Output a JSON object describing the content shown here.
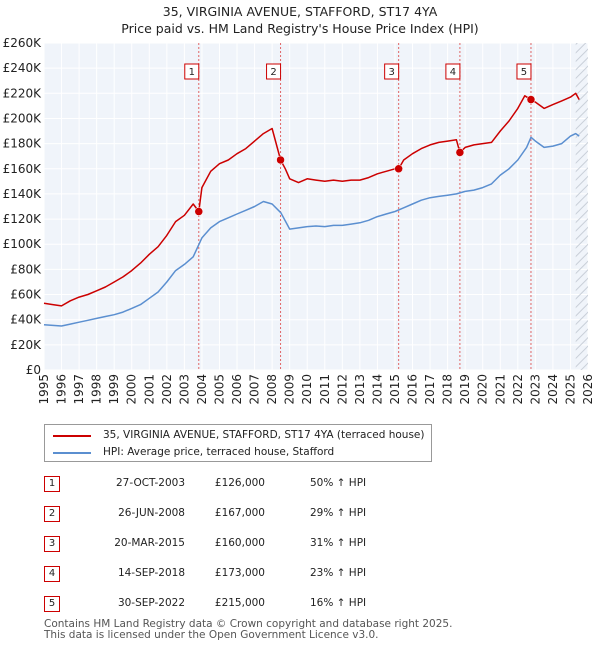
{
  "chart_data": {
    "type": "line",
    "title": "35, VIRGINIA AVENUE, STAFFORD, ST17 4YA",
    "subtitle": "Price paid vs. HM Land Registry's House Price Index (HPI)",
    "xlabel": "",
    "ylabel": "",
    "xlim": [
      1995,
      2026
    ],
    "ylim": [
      0,
      260000
    ],
    "y_ticks": [
      0,
      20000,
      40000,
      60000,
      80000,
      100000,
      120000,
      140000,
      160000,
      180000,
      200000,
      220000,
      240000,
      260000
    ],
    "y_tick_labels": [
      "£0",
      "£20K",
      "£40K",
      "£60K",
      "£80K",
      "£100K",
      "£120K",
      "£140K",
      "£160K",
      "£180K",
      "£200K",
      "£220K",
      "£240K",
      "£260K"
    ],
    "x_ticks": [
      1995,
      1996,
      1997,
      1998,
      1999,
      2000,
      2001,
      2002,
      2003,
      2004,
      2005,
      2006,
      2007,
      2008,
      2009,
      2010,
      2011,
      2012,
      2013,
      2014,
      2015,
      2016,
      2017,
      2018,
      2019,
      2020,
      2021,
      2022,
      2023,
      2024,
      2025,
      2026
    ],
    "x_tick_labels": [
      "1995",
      "1996",
      "1997",
      "1998",
      "1999",
      "2000",
      "2001",
      "2002",
      "2003",
      "2004",
      "2005",
      "2006",
      "2007",
      "2008",
      "2009",
      "2010",
      "2011",
      "2012",
      "2013",
      "2014",
      "2015",
      "2016",
      "2017",
      "2018",
      "2019",
      "2020",
      "2021",
      "2022",
      "2023",
      "2024",
      "2025",
      "2026"
    ],
    "grid": true,
    "series": [
      {
        "name": "35, VIRGINIA AVENUE, STAFFORD, ST17 4YA (terraced house)",
        "color": "#cc0000",
        "x": [
          1995.0,
          1995.5,
          1996.0,
          1996.5,
          1997.0,
          1997.5,
          1998.0,
          1998.5,
          1999.0,
          1999.5,
          2000.0,
          2000.5,
          2001.0,
          2001.5,
          2002.0,
          2002.5,
          2003.0,
          2003.5,
          2003.82,
          2004.0,
          2004.5,
          2005.0,
          2005.5,
          2006.0,
          2006.5,
          2007.0,
          2007.5,
          2008.0,
          2008.48,
          2008.75,
          2009.0,
          2009.5,
          2010.0,
          2010.5,
          2011.0,
          2011.5,
          2012.0,
          2012.5,
          2013.0,
          2013.5,
          2014.0,
          2014.5,
          2015.0,
          2015.21,
          2015.5,
          2016.0,
          2016.5,
          2017.0,
          2017.5,
          2018.0,
          2018.5,
          2018.7,
          2019.0,
          2019.5,
          2020.0,
          2020.5,
          2021.0,
          2021.5,
          2022.0,
          2022.4,
          2022.75,
          2023.0,
          2023.5,
          2024.0,
          2024.5,
          2025.0,
          2025.3,
          2025.5
        ],
        "values": [
          53000,
          52000,
          51000,
          55000,
          58000,
          60000,
          63000,
          66000,
          70000,
          74000,
          79000,
          85000,
          92000,
          98000,
          107000,
          118000,
          123000,
          132000,
          126000,
          145000,
          158000,
          164000,
          167000,
          172000,
          176000,
          182000,
          188000,
          192000,
          167000,
          160000,
          152000,
          149000,
          152000,
          151000,
          150000,
          151000,
          150000,
          151000,
          151000,
          153000,
          156000,
          158000,
          160000,
          160000,
          167000,
          172000,
          176000,
          179000,
          181000,
          182000,
          183000,
          173000,
          177000,
          179000,
          180000,
          181000,
          190000,
          198000,
          208000,
          218000,
          215000,
          213000,
          208000,
          211000,
          214000,
          217000,
          220000,
          215000
        ]
      },
      {
        "name": "HPI: Average price, terraced house, Stafford",
        "color": "#5b8fd0",
        "x": [
          1995.0,
          1995.5,
          1996.0,
          1996.5,
          1997.0,
          1997.5,
          1998.0,
          1998.5,
          1999.0,
          1999.5,
          2000.0,
          2000.5,
          2001.0,
          2001.5,
          2002.0,
          2002.5,
          2003.0,
          2003.5,
          2004.0,
          2004.5,
          2005.0,
          2005.5,
          2006.0,
          2006.5,
          2007.0,
          2007.5,
          2008.0,
          2008.5,
          2009.0,
          2009.5,
          2010.0,
          2010.5,
          2011.0,
          2011.5,
          2012.0,
          2012.5,
          2013.0,
          2013.5,
          2014.0,
          2014.5,
          2015.0,
          2015.5,
          2016.0,
          2016.5,
          2017.0,
          2017.5,
          2018.0,
          2018.5,
          2019.0,
          2019.5,
          2020.0,
          2020.5,
          2021.0,
          2021.5,
          2022.0,
          2022.5,
          2022.75,
          2023.0,
          2023.5,
          2024.0,
          2024.5,
          2025.0,
          2025.3,
          2025.5
        ],
        "values": [
          36000,
          35500,
          35000,
          36500,
          38000,
          39500,
          41000,
          42500,
          44000,
          46000,
          49000,
          52000,
          57000,
          62000,
          70000,
          79000,
          84000,
          90000,
          105000,
          113000,
          118000,
          121000,
          124000,
          127000,
          130000,
          134000,
          132000,
          125000,
          112000,
          113000,
          114000,
          114500,
          114000,
          115000,
          115000,
          116000,
          117000,
          119000,
          122000,
          124000,
          126000,
          129000,
          132000,
          135000,
          137000,
          138000,
          139000,
          140000,
          142000,
          143000,
          145000,
          148000,
          155000,
          160000,
          167000,
          177000,
          185000,
          182000,
          177000,
          178000,
          180000,
          186000,
          188000,
          186000
        ]
      }
    ],
    "sale_points": [
      {
        "n": "1",
        "x": 2003.82,
        "value": 126000
      },
      {
        "n": "2",
        "x": 2008.48,
        "value": 167000
      },
      {
        "n": "3",
        "x": 2015.21,
        "value": 160000
      },
      {
        "n": "4",
        "x": 2018.7,
        "value": 173000
      },
      {
        "n": "5",
        "x": 2022.75,
        "value": 215000
      }
    ],
    "future_shading_from": 2025.3
  },
  "legend": {
    "property_label": "35, VIRGINIA AVENUE, STAFFORD, ST17 4YA (terraced house)",
    "hpi_label": "HPI: Average price, terraced house, Stafford",
    "property_color": "#cc0000",
    "hpi_color": "#5b8fd0"
  },
  "sales": [
    {
      "n": "1",
      "date": "27-OCT-2003",
      "price": "£126,000",
      "hpi": "50% ↑ HPI"
    },
    {
      "n": "2",
      "date": "26-JUN-2008",
      "price": "£167,000",
      "hpi": "29% ↑ HPI"
    },
    {
      "n": "3",
      "date": "20-MAR-2015",
      "price": "£160,000",
      "hpi": "31% ↑ HPI"
    },
    {
      "n": "4",
      "date": "14-SEP-2018",
      "price": "£173,000",
      "hpi": "23% ↑ HPI"
    },
    {
      "n": "5",
      "date": "30-SEP-2022",
      "price": "£215,000",
      "hpi": "16% ↑ HPI"
    }
  ],
  "footer": {
    "line1": "Contains HM Land Registry data © Crown copyright and database right 2025.",
    "line2": "This data is licensed under the Open Government Licence v3.0."
  }
}
